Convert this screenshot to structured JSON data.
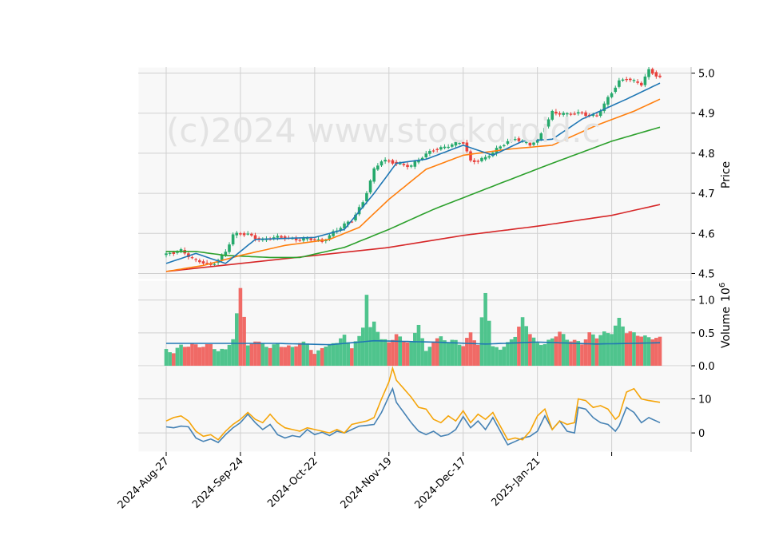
{
  "watermark": "(c)2024 www.stockdroid.c",
  "colors": {
    "up": "#26a96c",
    "down": "#e8413c",
    "up_vol": "#4fc48d",
    "down_vol": "#f06a66",
    "ma_fast": "#1f77b4",
    "ma_mid": "#ff7f0e",
    "ma_slow": "#2ca02c",
    "ma_long": "#d62728",
    "osc_a": "#4682b4",
    "osc_b": "#f5a50a",
    "vol_ma": "#1f77b4",
    "panel_bg": "#f8f8f8",
    "grid": "#d0d0d0"
  },
  "chart_data": [
    {
      "type": "candlestick",
      "ylabel": "Price",
      "ylim": [
        4.485,
        5.015
      ],
      "yticks": [
        "4.5",
        "4.6",
        "4.7",
        "4.8",
        "4.9",
        "5.0"
      ],
      "xticks": [
        "2024-Aug-27",
        "2024-Sep-24",
        "2024-Oct-22",
        "2024-Nov-19",
        "2024-Dec-17",
        "2025-Jan-21"
      ],
      "close_anchors": [
        [
          0,
          4.545
        ],
        [
          4,
          4.56
        ],
        [
          8,
          4.53
        ],
        [
          12,
          4.52
        ],
        [
          16,
          4.555
        ],
        [
          18,
          4.595
        ],
        [
          22,
          4.598
        ],
        [
          26,
          4.585
        ],
        [
          32,
          4.59
        ],
        [
          38,
          4.585
        ],
        [
          42,
          4.58
        ],
        [
          45,
          4.605
        ],
        [
          50,
          4.63
        ],
        [
          53,
          4.68
        ],
        [
          56,
          4.76
        ],
        [
          58,
          4.78
        ],
        [
          62,
          4.775
        ],
        [
          66,
          4.77
        ],
        [
          70,
          4.795
        ],
        [
          72,
          4.81
        ],
        [
          76,
          4.82
        ],
        [
          80,
          4.825
        ],
        [
          82,
          4.78
        ],
        [
          86,
          4.79
        ],
        [
          88,
          4.8
        ],
        [
          92,
          4.83
        ],
        [
          94,
          4.84
        ],
        [
          98,
          4.82
        ],
        [
          100,
          4.83
        ],
        [
          104,
          4.905
        ],
        [
          108,
          4.895
        ],
        [
          112,
          4.9
        ],
        [
          116,
          4.895
        ],
        [
          118,
          4.92
        ],
        [
          122,
          4.98
        ],
        [
          124,
          4.99
        ],
        [
          128,
          4.97
        ],
        [
          130,
          5.005
        ],
        [
          133,
          4.99
        ]
      ],
      "ma_anchors": {
        "ma_fast": [
          [
            0,
            4.525
          ],
          [
            8,
            4.55
          ],
          [
            16,
            4.525
          ],
          [
            24,
            4.585
          ],
          [
            40,
            4.59
          ],
          [
            48,
            4.61
          ],
          [
            56,
            4.7
          ],
          [
            62,
            4.775
          ],
          [
            70,
            4.785
          ],
          [
            80,
            4.82
          ],
          [
            88,
            4.795
          ],
          [
            96,
            4.83
          ],
          [
            104,
            4.835
          ],
          [
            112,
            4.885
          ],
          [
            124,
            4.935
          ],
          [
            133,
            4.975
          ]
        ],
        "ma_mid": [
          [
            0,
            4.505
          ],
          [
            10,
            4.52
          ],
          [
            20,
            4.545
          ],
          [
            32,
            4.57
          ],
          [
            44,
            4.585
          ],
          [
            52,
            4.615
          ],
          [
            60,
            4.685
          ],
          [
            70,
            4.76
          ],
          [
            80,
            4.795
          ],
          [
            92,
            4.81
          ],
          [
            104,
            4.82
          ],
          [
            116,
            4.87
          ],
          [
            126,
            4.905
          ],
          [
            133,
            4.935
          ]
        ],
        "ma_slow": [
          [
            0,
            4.555
          ],
          [
            8,
            4.555
          ],
          [
            16,
            4.545
          ],
          [
            28,
            4.54
          ],
          [
            36,
            4.54
          ],
          [
            48,
            4.565
          ],
          [
            60,
            4.61
          ],
          [
            72,
            4.66
          ],
          [
            90,
            4.725
          ],
          [
            104,
            4.775
          ],
          [
            120,
            4.83
          ],
          [
            133,
            4.865
          ]
        ],
        "ma_long": [
          [
            0,
            4.505
          ],
          [
            20,
            4.525
          ],
          [
            40,
            4.545
          ],
          [
            60,
            4.565
          ],
          [
            80,
            4.595
          ],
          [
            100,
            4.618
          ],
          [
            120,
            4.645
          ],
          [
            133,
            4.672
          ]
        ]
      }
    },
    {
      "type": "bar",
      "ylabel": "Volume",
      "scale_exponent": "6",
      "ylim": [
        0,
        1.3
      ],
      "yticks": [
        "0.0",
        "0.5",
        "1.0"
      ],
      "volume_anchors": [
        [
          0,
          0.25
        ],
        [
          2,
          0.22
        ],
        [
          4,
          0.3
        ],
        [
          6,
          0.28
        ],
        [
          8,
          0.32
        ],
        [
          10,
          0.3
        ],
        [
          12,
          0.35
        ],
        [
          14,
          0.2
        ],
        [
          16,
          0.25
        ],
        [
          18,
          0.38
        ],
        [
          20,
          1.22
        ],
        [
          22,
          0.3
        ],
        [
          24,
          0.38
        ],
        [
          26,
          0.3
        ],
        [
          28,
          0.28
        ],
        [
          30,
          0.35
        ],
        [
          32,
          0.3
        ],
        [
          34,
          0.28
        ],
        [
          36,
          0.32
        ],
        [
          38,
          0.35
        ],
        [
          40,
          0.18
        ],
        [
          42,
          0.3
        ],
        [
          44,
          0.3
        ],
        [
          46,
          0.35
        ],
        [
          48,
          0.45
        ],
        [
          50,
          0.3
        ],
        [
          52,
          0.45
        ],
        [
          53,
          0.6
        ],
        [
          54,
          1.08
        ],
        [
          55,
          0.55
        ],
        [
          56,
          0.65
        ],
        [
          58,
          0.4
        ],
        [
          60,
          0.38
        ],
        [
          62,
          0.48
        ],
        [
          64,
          0.38
        ],
        [
          66,
          0.32
        ],
        [
          68,
          0.64
        ],
        [
          70,
          0.22
        ],
        [
          72,
          0.4
        ],
        [
          74,
          0.42
        ],
        [
          76,
          0.35
        ],
        [
          78,
          0.38
        ],
        [
          80,
          0.32
        ],
        [
          82,
          0.52
        ],
        [
          84,
          0.3
        ],
        [
          86,
          1.1
        ],
        [
          88,
          0.28
        ],
        [
          90,
          0.28
        ],
        [
          92,
          0.35
        ],
        [
          94,
          0.45
        ],
        [
          96,
          0.7
        ],
        [
          98,
          0.5
        ],
        [
          100,
          0.35
        ],
        [
          102,
          0.35
        ],
        [
          104,
          0.4
        ],
        [
          106,
          0.5
        ],
        [
          108,
          0.4
        ],
        [
          110,
          0.4
        ],
        [
          112,
          0.35
        ],
        [
          114,
          0.48
        ],
        [
          116,
          0.42
        ],
        [
          118,
          0.5
        ],
        [
          120,
          0.52
        ],
        [
          122,
          0.72
        ],
        [
          124,
          0.5
        ],
        [
          126,
          0.48
        ],
        [
          128,
          0.45
        ],
        [
          130,
          0.45
        ],
        [
          133,
          0.42
        ]
      ],
      "vol_ma_anchors": [
        [
          0,
          0.34
        ],
        [
          30,
          0.34
        ],
        [
          44,
          0.32
        ],
        [
          56,
          0.38
        ],
        [
          72,
          0.36
        ],
        [
          86,
          0.33
        ],
        [
          100,
          0.36
        ],
        [
          116,
          0.33
        ],
        [
          133,
          0.35
        ]
      ]
    },
    {
      "type": "line",
      "ylim": [
        -5.6,
        19.5
      ],
      "yticks": [
        "0",
        "10"
      ],
      "series_a_anchors": [
        [
          0,
          1.8
        ],
        [
          2,
          1.5
        ],
        [
          4,
          2.0
        ],
        [
          6,
          1.8
        ],
        [
          8,
          -1.5
        ],
        [
          10,
          -2.5
        ],
        [
          12,
          -1.8
        ],
        [
          14,
          -2.8
        ],
        [
          16,
          -0.5
        ],
        [
          18,
          1.5
        ],
        [
          20,
          3.0
        ],
        [
          22,
          5.5
        ],
        [
          24,
          3.0
        ],
        [
          26,
          1.0
        ],
        [
          28,
          2.5
        ],
        [
          30,
          -0.5
        ],
        [
          32,
          -1.5
        ],
        [
          34,
          -0.8
        ],
        [
          36,
          -1.2
        ],
        [
          38,
          1.0
        ],
        [
          40,
          -0.5
        ],
        [
          42,
          0.2
        ],
        [
          44,
          -0.8
        ],
        [
          46,
          0.5
        ],
        [
          48,
          0.0
        ],
        [
          50,
          1.0
        ],
        [
          52,
          2.0
        ],
        [
          54,
          2.2
        ],
        [
          56,
          2.5
        ],
        [
          58,
          6.0
        ],
        [
          60,
          10.8
        ],
        [
          61,
          13.0
        ],
        [
          62,
          9.0
        ],
        [
          64,
          6.0
        ],
        [
          66,
          3.0
        ],
        [
          68,
          0.5
        ],
        [
          70,
          -0.5
        ],
        [
          72,
          0.5
        ],
        [
          74,
          -1.0
        ],
        [
          76,
          -0.5
        ],
        [
          78,
          1.0
        ],
        [
          80,
          4.8
        ],
        [
          82,
          1.5
        ],
        [
          84,
          3.5
        ],
        [
          86,
          1.0
        ],
        [
          88,
          4.5
        ],
        [
          90,
          0.5
        ],
        [
          92,
          -3.5
        ],
        [
          94,
          -2.5
        ],
        [
          96,
          -1.5
        ],
        [
          98,
          -1.0
        ],
        [
          100,
          0.5
        ],
        [
          102,
          5.0
        ],
        [
          104,
          1.0
        ],
        [
          106,
          3.5
        ],
        [
          108,
          0.5
        ],
        [
          110,
          0.0
        ],
        [
          111,
          7.5
        ],
        [
          113,
          7.0
        ],
        [
          115,
          4.5
        ],
        [
          117,
          3.0
        ],
        [
          119,
          2.5
        ],
        [
          121,
          0.5
        ],
        [
          122,
          2.0
        ],
        [
          124,
          7.5
        ],
        [
          126,
          6.0
        ],
        [
          128,
          3.0
        ],
        [
          130,
          4.5
        ],
        [
          133,
          3.0
        ]
      ],
      "series_b_anchors": [
        [
          0,
          3.5
        ],
        [
          2,
          4.5
        ],
        [
          4,
          5.0
        ],
        [
          6,
          3.5
        ],
        [
          8,
          0.5
        ],
        [
          10,
          -1.0
        ],
        [
          12,
          -0.5
        ],
        [
          14,
          -2.0
        ],
        [
          16,
          0.5
        ],
        [
          18,
          2.5
        ],
        [
          20,
          4.0
        ],
        [
          22,
          6.0
        ],
        [
          24,
          4.0
        ],
        [
          26,
          3.0
        ],
        [
          28,
          5.5
        ],
        [
          30,
          3.0
        ],
        [
          32,
          1.5
        ],
        [
          34,
          1.0
        ],
        [
          36,
          0.5
        ],
        [
          38,
          1.5
        ],
        [
          40,
          1.0
        ],
        [
          42,
          0.5
        ],
        [
          44,
          0.0
        ],
        [
          46,
          1.0
        ],
        [
          48,
          0.0
        ],
        [
          50,
          2.5
        ],
        [
          52,
          3.0
        ],
        [
          54,
          3.5
        ],
        [
          56,
          4.5
        ],
        [
          58,
          10.0
        ],
        [
          60,
          15.0
        ],
        [
          61,
          19.0
        ],
        [
          62,
          15.5
        ],
        [
          64,
          13.0
        ],
        [
          66,
          10.5
        ],
        [
          68,
          7.5
        ],
        [
          70,
          7.0
        ],
        [
          72,
          4.0
        ],
        [
          74,
          3.0
        ],
        [
          76,
          5.0
        ],
        [
          78,
          3.5
        ],
        [
          80,
          6.5
        ],
        [
          82,
          3.0
        ],
        [
          84,
          5.5
        ],
        [
          86,
          4.0
        ],
        [
          88,
          6.0
        ],
        [
          90,
          2.0
        ],
        [
          92,
          -2.0
        ],
        [
          94,
          -1.5
        ],
        [
          96,
          -2.0
        ],
        [
          98,
          0.5
        ],
        [
          100,
          5.0
        ],
        [
          102,
          7.0
        ],
        [
          104,
          1.0
        ],
        [
          106,
          3.5
        ],
        [
          108,
          2.5
        ],
        [
          110,
          3.0
        ],
        [
          111,
          10.0
        ],
        [
          113,
          9.5
        ],
        [
          115,
          7.5
        ],
        [
          117,
          8.0
        ],
        [
          119,
          7.0
        ],
        [
          121,
          4.0
        ],
        [
          122,
          5.0
        ],
        [
          124,
          12.0
        ],
        [
          126,
          13.0
        ],
        [
          128,
          10.0
        ],
        [
          130,
          9.5
        ],
        [
          133,
          9.0
        ]
      ]
    }
  ]
}
